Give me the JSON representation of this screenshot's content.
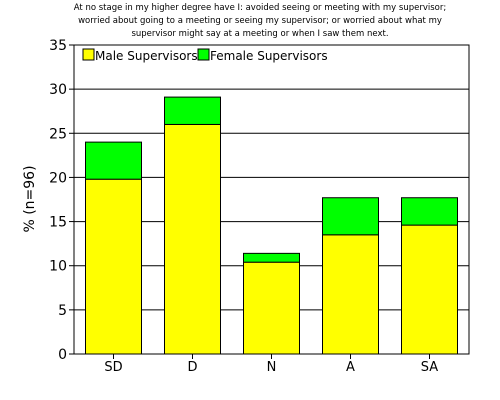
{
  "chart_data": {
    "type": "bar",
    "stacked": true,
    "title": "At no stage in my higher degree have I: avoided seeing or meeting with my supervisor;\nworried about going to a meeting or seeing my supervisor; or worried about what my\nsupervisor might say at a meeting or when I saw them next.",
    "xlabel": "",
    "ylabel": "% (n=96)",
    "categories": [
      "SD",
      "D",
      "N",
      "A",
      "SA"
    ],
    "series": [
      {
        "name": "Male Supervisors",
        "values": [
          19.8,
          26.0,
          10.4,
          13.5,
          14.6
        ],
        "color": "#ffff00"
      },
      {
        "name": "Female Supervisors",
        "values": [
          4.2,
          3.1,
          1.0,
          4.2,
          3.1
        ],
        "color": "#00ff00"
      }
    ],
    "ylim": [
      0,
      35
    ],
    "yticks": [
      0,
      5,
      10,
      15,
      20,
      25,
      30,
      35
    ],
    "grid": "horizontal",
    "legend_position": "top-left"
  }
}
